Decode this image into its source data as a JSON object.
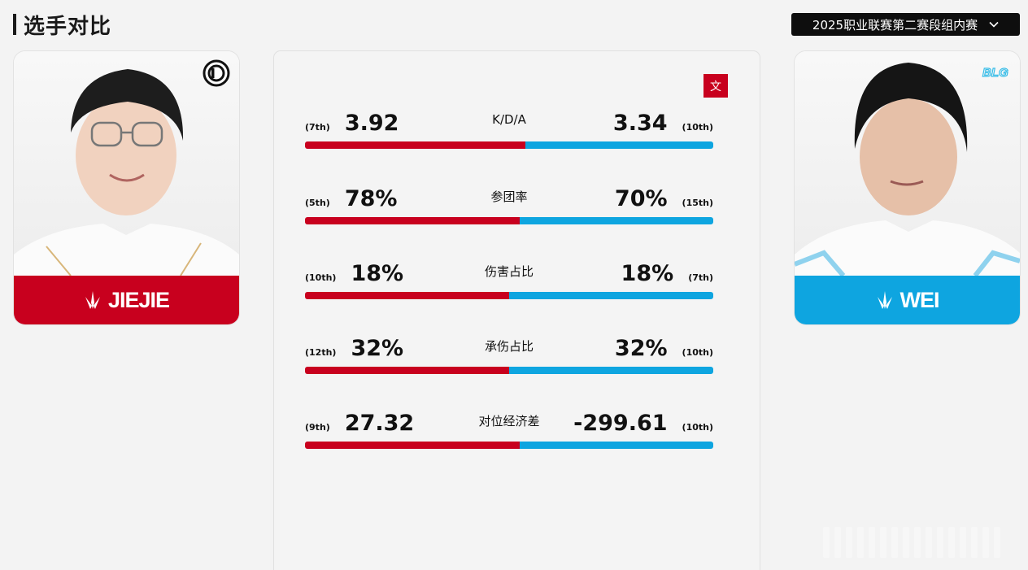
{
  "page": {
    "title": "选手对比",
    "season_select": "2025职业联赛第二赛段组内赛"
  },
  "players": {
    "left": {
      "name": "JIEJIE",
      "team_logo": "ig-logo",
      "color": "#c8001e"
    },
    "right": {
      "name": "WEI",
      "team_logo": "blg-logo",
      "color": "#0ea5e0"
    }
  },
  "compare": {
    "lang_button": "文",
    "stats": [
      {
        "label": "K/D/A",
        "left_rank": "(7th)",
        "left_value": "3.92",
        "right_value": "3.34",
        "right_rank": "(10th)",
        "left_share": 0.54
      },
      {
        "label": "参团率",
        "left_rank": "(5th)",
        "left_value": "78%",
        "right_value": "70%",
        "right_rank": "(15th)",
        "left_share": 0.526
      },
      {
        "label": "伤害占比",
        "left_rank": "(10th)",
        "left_value": "18%",
        "right_value": "18%",
        "right_rank": "(7th)",
        "left_share": 0.5
      },
      {
        "label": "承伤占比",
        "left_rank": "(12th)",
        "left_value": "32%",
        "right_value": "32%",
        "right_rank": "(10th)",
        "left_share": 0.5
      },
      {
        "label": "对位经济差",
        "left_rank": "(9th)",
        "left_value": "27.32",
        "right_value": "-299.61",
        "right_rank": "(10th)",
        "left_share": 0.526
      }
    ]
  },
  "colors": {
    "red": "#c8001e",
    "blue": "#0ea5e0",
    "dark": "#0e0e0e"
  }
}
